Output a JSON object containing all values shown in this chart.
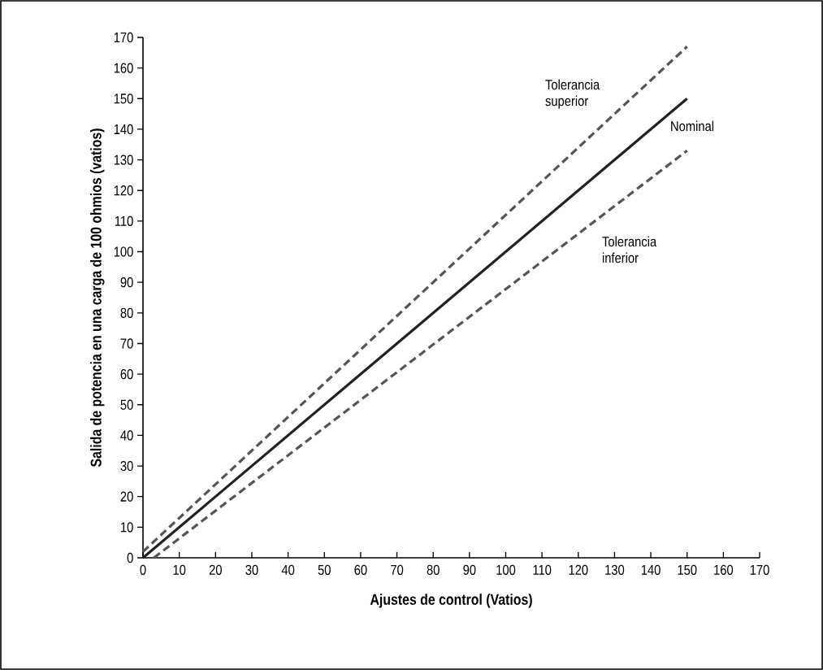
{
  "chart_data": {
    "type": "line",
    "xlabel": "Ajustes de control (Vatios)",
    "ylabel": "Salida de potencia en una carga de 100 ohmios (vatios)",
    "xlim": [
      0,
      170
    ],
    "ylim": [
      0,
      170
    ],
    "xticks": [
      0,
      10,
      20,
      30,
      40,
      50,
      60,
      70,
      80,
      90,
      100,
      110,
      120,
      130,
      140,
      150,
      160,
      170
    ],
    "yticks": [
      0,
      10,
      20,
      30,
      40,
      50,
      60,
      70,
      80,
      90,
      100,
      110,
      120,
      130,
      140,
      150,
      160,
      170
    ],
    "grid": false,
    "legend": false,
    "series": [
      {
        "name": "Tolerancia superior",
        "color": "#555555",
        "line_style": "dashed",
        "x": [
          0,
          150
        ],
        "values": [
          2,
          167
        ]
      },
      {
        "name": "Nominal",
        "color": "#222222",
        "line_style": "solid",
        "x": [
          0,
          150
        ],
        "values": [
          0,
          150
        ]
      },
      {
        "name": "Tolerancia inferior",
        "color": "#555555",
        "line_style": "dashed",
        "x": [
          3,
          150
        ],
        "values": [
          0,
          133
        ]
      }
    ]
  }
}
